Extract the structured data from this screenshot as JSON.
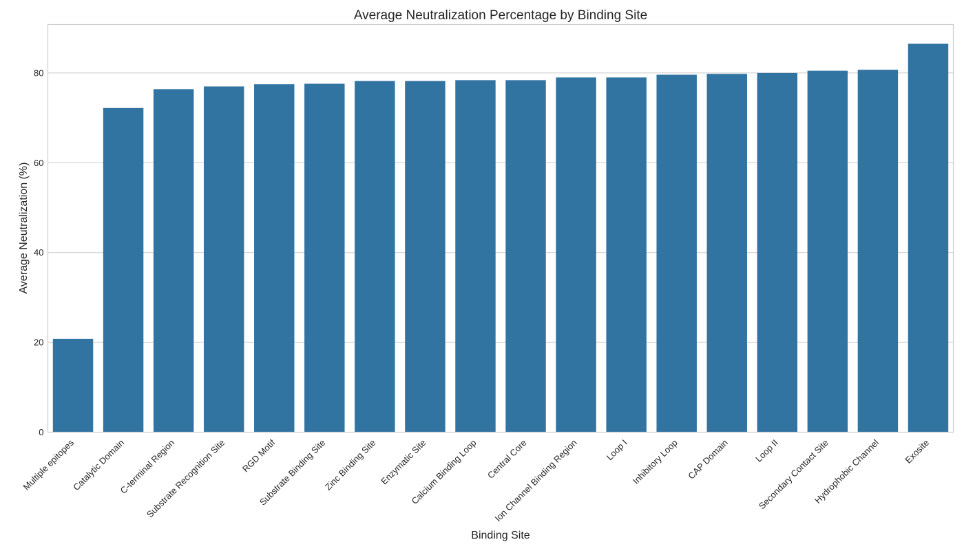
{
  "chart_data": {
    "type": "bar",
    "title": "Average Neutralization Percentage by Binding Site",
    "xlabel": "Binding Site",
    "ylabel": "Average Neutralization (%)",
    "ylim": [
      0,
      90.8
    ],
    "yticks": [
      0,
      20,
      40,
      60,
      80
    ],
    "grid": "horizontal",
    "bar_color": "#3274a1",
    "categories": [
      "Multiple epitopes",
      "Catalytic Domain",
      "C-terminal Region",
      "Substrate Recognition Site",
      "RGD Motif",
      "Substrate Binding Site",
      "Zinc Binding Site",
      "Enzymatic Site",
      "Calcium Binding Loop",
      "Central Core",
      "Ion Channel Binding Region",
      "Loop I",
      "Inhibitory Loop",
      "CAP Domain",
      "Loop II",
      "Secondary Contact Site",
      "Hydrophobic Channel",
      "Exosite"
    ],
    "values": [
      20.8,
      72.2,
      76.4,
      77.0,
      77.5,
      77.6,
      78.2,
      78.2,
      78.4,
      78.4,
      79.0,
      79.0,
      79.6,
      79.8,
      80.0,
      80.5,
      80.7,
      86.5
    ]
  }
}
